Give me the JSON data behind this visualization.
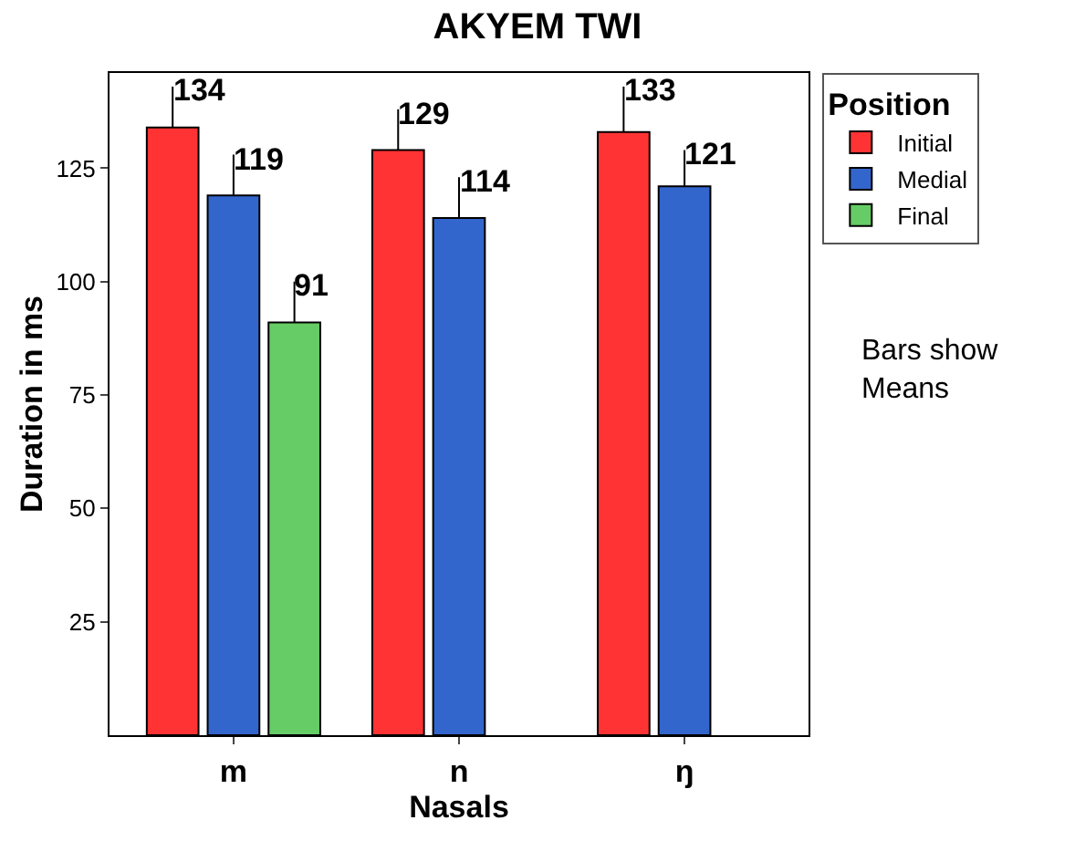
{
  "chart_data": {
    "type": "bar",
    "title": "AKYEM TWI",
    "xlabel": "Nasals",
    "ylabel": "Duration in ms",
    "legend_title": "Position",
    "categories": [
      "m",
      "n",
      "ŋ"
    ],
    "series": [
      {
        "name": "Initial",
        "color": "#ff3333",
        "values": [
          134,
          129,
          133
        ],
        "errors": [
          [
            134,
            143
          ],
          [
            129,
            138
          ],
          [
            133,
            143
          ]
        ]
      },
      {
        "name": "Medial",
        "color": "#3366cc",
        "values": [
          119,
          114,
          121
        ],
        "errors": [
          [
            119,
            128
          ],
          [
            114,
            123
          ],
          [
            121,
            129
          ]
        ]
      },
      {
        "name": "Final",
        "color": "#66cc66",
        "values": [
          91,
          null,
          null
        ],
        "errors": [
          [
            91,
            100
          ],
          null,
          null
        ]
      }
    ],
    "ylim": [
      0,
      146
    ],
    "yticks": [
      25,
      50,
      75,
      100,
      125
    ],
    "legend": "top right",
    "data_labels": true,
    "annotations": [
      "Bars show\nMeans"
    ]
  }
}
